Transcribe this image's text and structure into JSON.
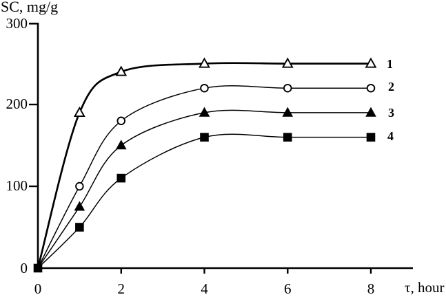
{
  "chart_data": {
    "type": "line",
    "title": "SC, mg/g",
    "ylabel": "SC, mg/g",
    "xlabel": "τ, hour",
    "x": [
      0,
      1,
      2,
      4,
      6,
      8
    ],
    "xlim": [
      0,
      9
    ],
    "ylim": [
      0,
      300
    ],
    "xtick_labels": [
      "0",
      "2",
      "4",
      "6",
      "8"
    ],
    "xticks": [
      0,
      2,
      4,
      6,
      8
    ],
    "ytick_labels": [
      "0",
      "100",
      "200",
      "300"
    ],
    "yticks": [
      0,
      100,
      200,
      300
    ],
    "grid": false,
    "legend_position": "right of last data point",
    "stroke_color": "#000000",
    "background_color": "#ffffff",
    "series": [
      {
        "label": "1",
        "marker": "open-triangle",
        "values": [
          0,
          190,
          240,
          250,
          250,
          250
        ],
        "thick_line": true,
        "origin_marker": false
      },
      {
        "label": "2",
        "marker": "open-circle",
        "values": [
          0,
          100,
          180,
          220,
          220,
          220
        ],
        "thick_line": false,
        "origin_marker": false
      },
      {
        "label": "3",
        "marker": "filled-triangle",
        "values": [
          0,
          75,
          150,
          190,
          190,
          190
        ],
        "thick_line": false,
        "origin_marker": false
      },
      {
        "label": "4",
        "marker": "filled-square",
        "values": [
          0,
          50,
          110,
          160,
          160,
          160
        ],
        "thick_line": false,
        "origin_marker": true
      }
    ]
  }
}
